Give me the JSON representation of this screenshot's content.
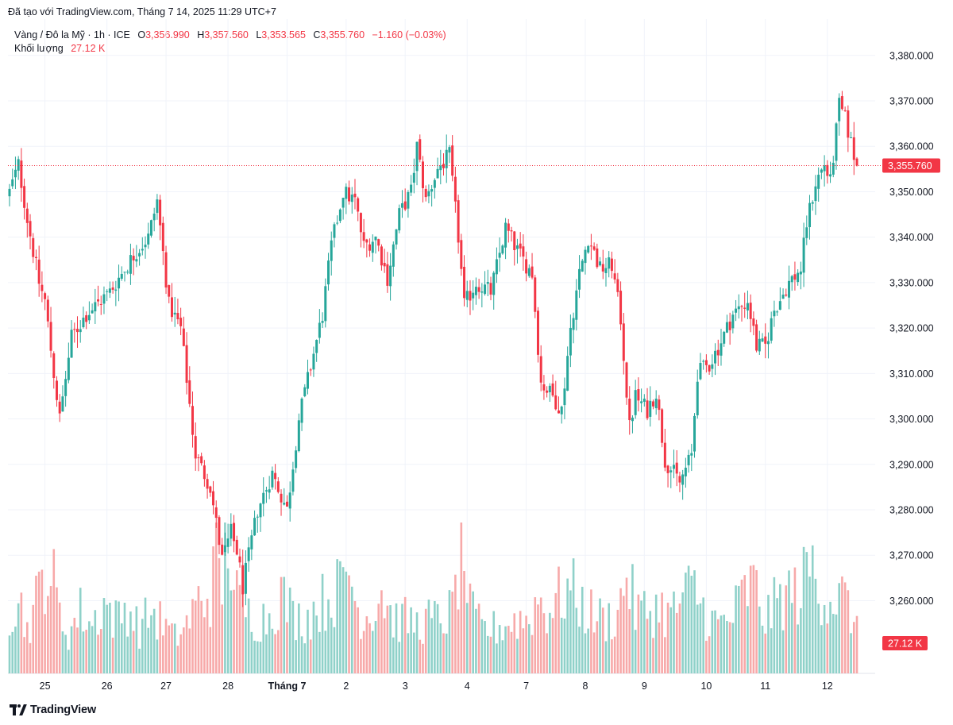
{
  "header": {
    "credit": "Đã tạo với TradingView.com, Tháng 7 14, 2025 11:29 UTC+7"
  },
  "legend": {
    "symbol": "Vàng / Đô la Mỹ · 1h · ICE",
    "o_label": "O",
    "o_value": "3,356.990",
    "h_label": "H",
    "h_value": "3,357.560",
    "l_label": "L",
    "l_value": "3,353.565",
    "c_label": "C",
    "c_value": "3,355.760",
    "change": "−1.160 (−0.03%)",
    "volume_label": "Khối lượng",
    "volume_value": "27.12 K"
  },
  "footer": {
    "brand": "TradingView"
  },
  "colors": {
    "up": "#26a69a",
    "down": "#f23645",
    "up_volume": "#8fd1c9",
    "down_volume": "#f7a9a9",
    "grid": "#f0f3fa",
    "text": "#131722"
  },
  "chart_data": {
    "type": "candlestick",
    "price_axis": {
      "ticks": [
        3260,
        3270,
        3280,
        3290,
        3300,
        3310,
        3320,
        3330,
        3340,
        3350,
        3360,
        3370,
        3380
      ],
      "tick_labels": [
        "3,260.000",
        "3,270.000",
        "3,280.000",
        "3,290.000",
        "3,300.000",
        "3,310.000",
        "3,320.000",
        "3,330.000",
        "3,340.000",
        "3,350.000",
        "3,360.000",
        "3,370.000",
        "3,380.000"
      ],
      "range": [
        3244,
        3388
      ]
    },
    "time_axis": {
      "labels": [
        "25",
        "26",
        "27",
        "28",
        "Tháng 7",
        "2",
        "3",
        "4",
        "7",
        "8",
        "9",
        "10",
        "11",
        "12"
      ],
      "label_bar_index": [
        12,
        33,
        53,
        74,
        94,
        114,
        134,
        155,
        175,
        195,
        215,
        236,
        256,
        277
      ]
    },
    "last_price": 3355.76,
    "last_price_label": "3,355.760",
    "last_volume_label": "27.12 K",
    "grid": true,
    "path": [
      [
        0,
        3350
      ],
      [
        3,
        3356
      ],
      [
        6,
        3344
      ],
      [
        10,
        3330
      ],
      [
        12,
        3326
      ],
      [
        15,
        3310
      ],
      [
        17,
        3300
      ],
      [
        21,
        3318
      ],
      [
        26,
        3323
      ],
      [
        34,
        3328
      ],
      [
        42,
        3336
      ],
      [
        47,
        3340
      ],
      [
        50,
        3348
      ],
      [
        54,
        3325
      ],
      [
        58,
        3320
      ],
      [
        63,
        3292
      ],
      [
        68,
        3285
      ],
      [
        72,
        3269
      ],
      [
        75,
        3275
      ],
      [
        77,
        3271
      ],
      [
        79,
        3263
      ],
      [
        84,
        3280
      ],
      [
        89,
        3288
      ],
      [
        94,
        3280
      ],
      [
        98,
        3300
      ],
      [
        106,
        3323
      ],
      [
        109,
        3338
      ],
      [
        113,
        3350
      ],
      [
        117,
        3348
      ],
      [
        120,
        3338
      ],
      [
        124,
        3340
      ],
      [
        128,
        3331
      ],
      [
        132,
        3345
      ],
      [
        136,
        3350
      ],
      [
        138,
        3360
      ],
      [
        141,
        3348
      ],
      [
        145,
        3355
      ],
      [
        149,
        3358
      ],
      [
        152,
        3340
      ],
      [
        154,
        3325
      ],
      [
        158,
        3330
      ],
      [
        163,
        3328
      ],
      [
        168,
        3342
      ],
      [
        172,
        3337
      ],
      [
        177,
        3332
      ],
      [
        180,
        3308
      ],
      [
        184,
        3305
      ],
      [
        187,
        3302
      ],
      [
        190,
        3320
      ],
      [
        193,
        3332
      ],
      [
        196,
        3340
      ],
      [
        200,
        3333
      ],
      [
        204,
        3334
      ],
      [
        207,
        3322
      ],
      [
        210,
        3298
      ],
      [
        212,
        3305
      ],
      [
        216,
        3302
      ],
      [
        219,
        3306
      ],
      [
        222,
        3291
      ],
      [
        227,
        3286
      ],
      [
        231,
        3292
      ],
      [
        233,
        3310
      ],
      [
        237,
        3312
      ],
      [
        241,
        3317
      ],
      [
        245,
        3323
      ],
      [
        250,
        3326
      ],
      [
        253,
        3316
      ],
      [
        256,
        3316
      ],
      [
        259,
        3324
      ],
      [
        264,
        3330
      ],
      [
        268,
        3333
      ],
      [
        270,
        3343
      ],
      [
        273,
        3352
      ],
      [
        276,
        3356
      ],
      [
        278,
        3352
      ],
      [
        281,
        3369
      ],
      [
        283,
        3366
      ],
      [
        286,
        3358
      ],
      [
        287,
        3355.76
      ]
    ],
    "volume_path": [
      [
        0,
        14
      ],
      [
        3,
        17
      ],
      [
        6,
        10
      ],
      [
        10,
        18
      ],
      [
        12,
        24
      ],
      [
        15,
        20
      ],
      [
        17,
        13
      ],
      [
        20,
        9
      ],
      [
        24,
        14
      ],
      [
        28,
        11
      ],
      [
        32,
        16
      ],
      [
        36,
        12
      ],
      [
        40,
        15
      ],
      [
        44,
        10
      ],
      [
        48,
        14
      ],
      [
        52,
        11
      ],
      [
        56,
        8
      ],
      [
        60,
        11
      ],
      [
        64,
        16
      ],
      [
        68,
        18
      ],
      [
        70,
        25
      ],
      [
        72,
        20
      ],
      [
        74,
        34
      ],
      [
        76,
        18
      ],
      [
        80,
        14
      ],
      [
        84,
        12
      ],
      [
        88,
        13
      ],
      [
        92,
        18
      ],
      [
        96,
        13
      ],
      [
        100,
        12
      ],
      [
        104,
        15
      ],
      [
        108,
        17
      ],
      [
        112,
        19
      ],
      [
        115,
        24
      ],
      [
        118,
        14
      ],
      [
        122,
        13
      ],
      [
        126,
        19
      ],
      [
        130,
        12
      ],
      [
        134,
        12
      ],
      [
        138,
        11
      ],
      [
        142,
        12
      ],
      [
        146,
        12
      ],
      [
        150,
        14
      ],
      [
        152,
        23
      ],
      [
        154,
        26
      ],
      [
        156,
        14
      ],
      [
        160,
        10
      ],
      [
        164,
        10
      ],
      [
        168,
        11
      ],
      [
        172,
        12
      ],
      [
        176,
        12
      ],
      [
        179,
        17
      ],
      [
        182,
        14
      ],
      [
        186,
        17
      ],
      [
        190,
        19
      ],
      [
        194,
        15
      ],
      [
        198,
        13
      ],
      [
        202,
        12
      ],
      [
        206,
        13
      ],
      [
        209,
        23
      ],
      [
        212,
        14
      ],
      [
        216,
        14
      ],
      [
        220,
        15
      ],
      [
        224,
        13
      ],
      [
        228,
        17
      ],
      [
        232,
        19
      ],
      [
        236,
        13
      ],
      [
        240,
        11
      ],
      [
        244,
        12
      ],
      [
        248,
        17
      ],
      [
        252,
        20
      ],
      [
        256,
        12
      ],
      [
        260,
        16
      ],
      [
        264,
        18
      ],
      [
        268,
        18
      ],
      [
        271,
        25
      ],
      [
        274,
        20
      ],
      [
        278,
        17
      ],
      [
        282,
        17
      ],
      [
        285,
        14
      ],
      [
        287,
        9
      ]
    ]
  }
}
